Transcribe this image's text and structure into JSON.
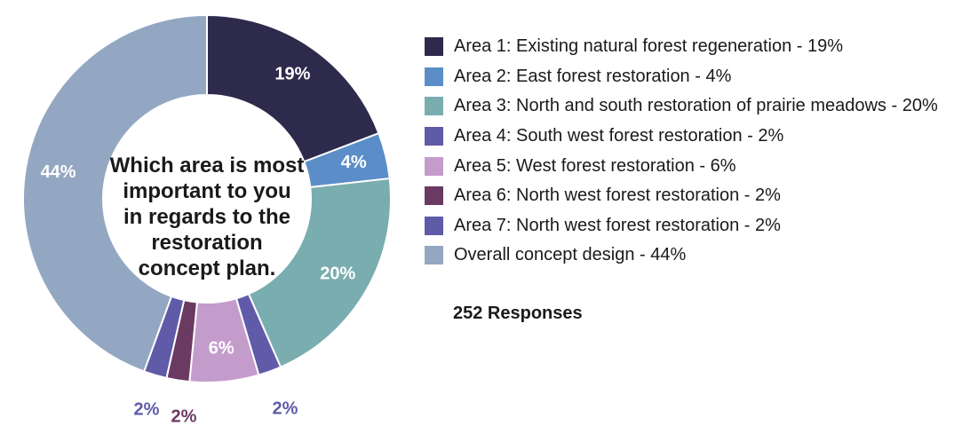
{
  "chart_data": {
    "type": "pie",
    "center_label_lines": [
      "Which area is most",
      "important to you",
      "in regards to the",
      "restoration",
      "concept plan."
    ],
    "responses": "252 Responses",
    "slices": [
      {
        "legend": "Area 1: Existing natural forest regeneration - 19%",
        "value": 19,
        "label": "19%",
        "color": "#2e2a4c",
        "label_color": "#ffffff"
      },
      {
        "legend": "Area 2: East forest restoration - 4%",
        "value": 4,
        "label": "4%",
        "color": "#5b8ec9",
        "label_color": "#ffffff"
      },
      {
        "legend": "Area 3: North and south restoration of prairie meadows - 20%",
        "value": 20,
        "label": "20%",
        "color": "#7aadb0",
        "label_color": "#ffffff"
      },
      {
        "legend": "Area 4: South west forest restoration - 2%",
        "value": 2,
        "label": "2%",
        "color": "#5f5ba8",
        "label_color": "#5f5ba8"
      },
      {
        "legend": "Area 5: West forest restoration - 6%",
        "value": 6,
        "label": "6%",
        "color": "#c49ccc",
        "label_color": "#ffffff"
      },
      {
        "legend": "Area 6: North west forest restoration - 2%",
        "value": 2,
        "label": "2%",
        "color": "#6b3a62",
        "label_color": "#6b3a62"
      },
      {
        "legend": "Area 7: North west forest restoration - 2%",
        "value": 2,
        "label": "2%",
        "color": "#5f5ba8",
        "label_color": "#5f5ba8"
      },
      {
        "legend": "Overall concept design - 44%",
        "value": 44,
        "label": "44%",
        "color": "#93a7c2",
        "label_color": "#ffffff"
      }
    ]
  }
}
